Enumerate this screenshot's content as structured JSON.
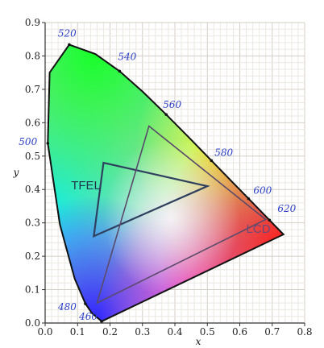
{
  "chart_data": {
    "type": "scatter",
    "title": "",
    "xlabel": "x",
    "ylabel": "y",
    "xlim": [
      0.0,
      0.8
    ],
    "ylim": [
      0.0,
      0.9
    ],
    "x_ticks": [
      "0.0",
      "0.1",
      "0.2",
      "0.3",
      "0.4",
      "0.5",
      "0.6",
      "0.7",
      "0.8"
    ],
    "y_ticks": [
      "0.0",
      "0.1",
      "0.2",
      "0.3",
      "0.4",
      "0.5",
      "0.6",
      "0.7",
      "0.8",
      "0.9"
    ],
    "grid": true,
    "spectral_locus": [
      {
        "x": 0.1741,
        "y": 0.005,
        "nm": "460"
      },
      {
        "x": 0.144,
        "y": 0.0297
      },
      {
        "x": 0.1241,
        "y": 0.0578,
        "nm": "480"
      },
      {
        "x": 0.0913,
        "y": 0.1327
      },
      {
        "x": 0.0454,
        "y": 0.295
      },
      {
        "x": 0.0082,
        "y": 0.5384,
        "nm": "500"
      },
      {
        "x": 0.0139,
        "y": 0.7502
      },
      {
        "x": 0.0743,
        "y": 0.8338,
        "nm": "520"
      },
      {
        "x": 0.1547,
        "y": 0.8059
      },
      {
        "x": 0.2296,
        "y": 0.7543,
        "nm": "540"
      },
      {
        "x": 0.3016,
        "y": 0.6923
      },
      {
        "x": 0.3731,
        "y": 0.6245,
        "nm": "560"
      },
      {
        "x": 0.4441,
        "y": 0.5547
      },
      {
        "x": 0.5125,
        "y": 0.4866,
        "nm": "580"
      },
      {
        "x": 0.5752,
        "y": 0.4242
      },
      {
        "x": 0.627,
        "y": 0.3725,
        "nm": "600"
      },
      {
        "x": 0.6658,
        "y": 0.334
      },
      {
        "x": 0.6915,
        "y": 0.3083,
        "nm": "620"
      },
      {
        "x": 0.7347,
        "y": 0.2653
      }
    ],
    "series": [
      {
        "name": "TFEL",
        "points": [
          [
            0.18,
            0.48
          ],
          [
            0.5,
            0.41
          ],
          [
            0.15,
            0.26
          ]
        ],
        "color": "#2f3f5e"
      },
      {
        "name": "LCD",
        "points": [
          [
            0.32,
            0.59
          ],
          [
            0.68,
            0.31
          ],
          [
            0.16,
            0.06
          ]
        ],
        "color": "#5a4a6a"
      }
    ]
  }
}
